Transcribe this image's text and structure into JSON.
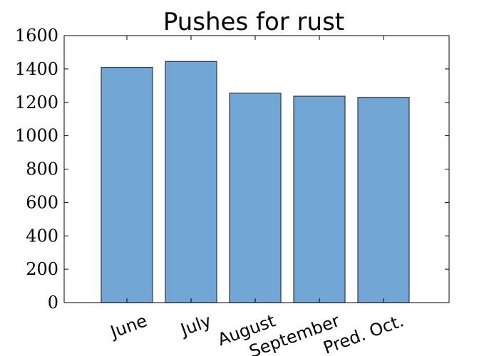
{
  "chart_data": {
    "type": "bar",
    "title": "Pushes for rust",
    "xlabel": "",
    "ylabel": "",
    "categories": [
      "June",
      "July",
      "August",
      "September",
      "Pred. Oct."
    ],
    "values": [
      1410,
      1445,
      1255,
      1237,
      1230
    ],
    "ylim": [
      0,
      1600
    ],
    "yticks": [
      0,
      200,
      400,
      600,
      800,
      1000,
      1200,
      1400,
      1600
    ],
    "x_tick_rotation_degrees": 20,
    "grid": false,
    "legend": "none",
    "colors": {
      "bar_fill": "#72a6d5",
      "bar_edge": "#303a46",
      "axes": "#000000"
    }
  }
}
